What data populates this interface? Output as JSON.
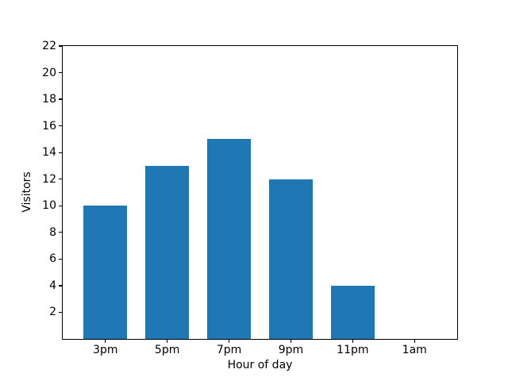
{
  "chart_data": {
    "type": "bar",
    "categories": [
      "3pm",
      "5pm",
      "7pm",
      "9pm",
      "11pm",
      "1am"
    ],
    "values": [
      10,
      13,
      15,
      12,
      4,
      0
    ],
    "xlabel": "Hour of day",
    "ylabel": "Visitors",
    "ylim": [
      0,
      22
    ],
    "yticks": [
      2,
      4,
      6,
      8,
      10,
      12,
      14,
      16,
      18,
      20,
      22
    ],
    "bar_color": "#1f77b4",
    "axis_color": "#000000",
    "background_color": "#ffffff",
    "grid": false,
    "legend": false
  }
}
